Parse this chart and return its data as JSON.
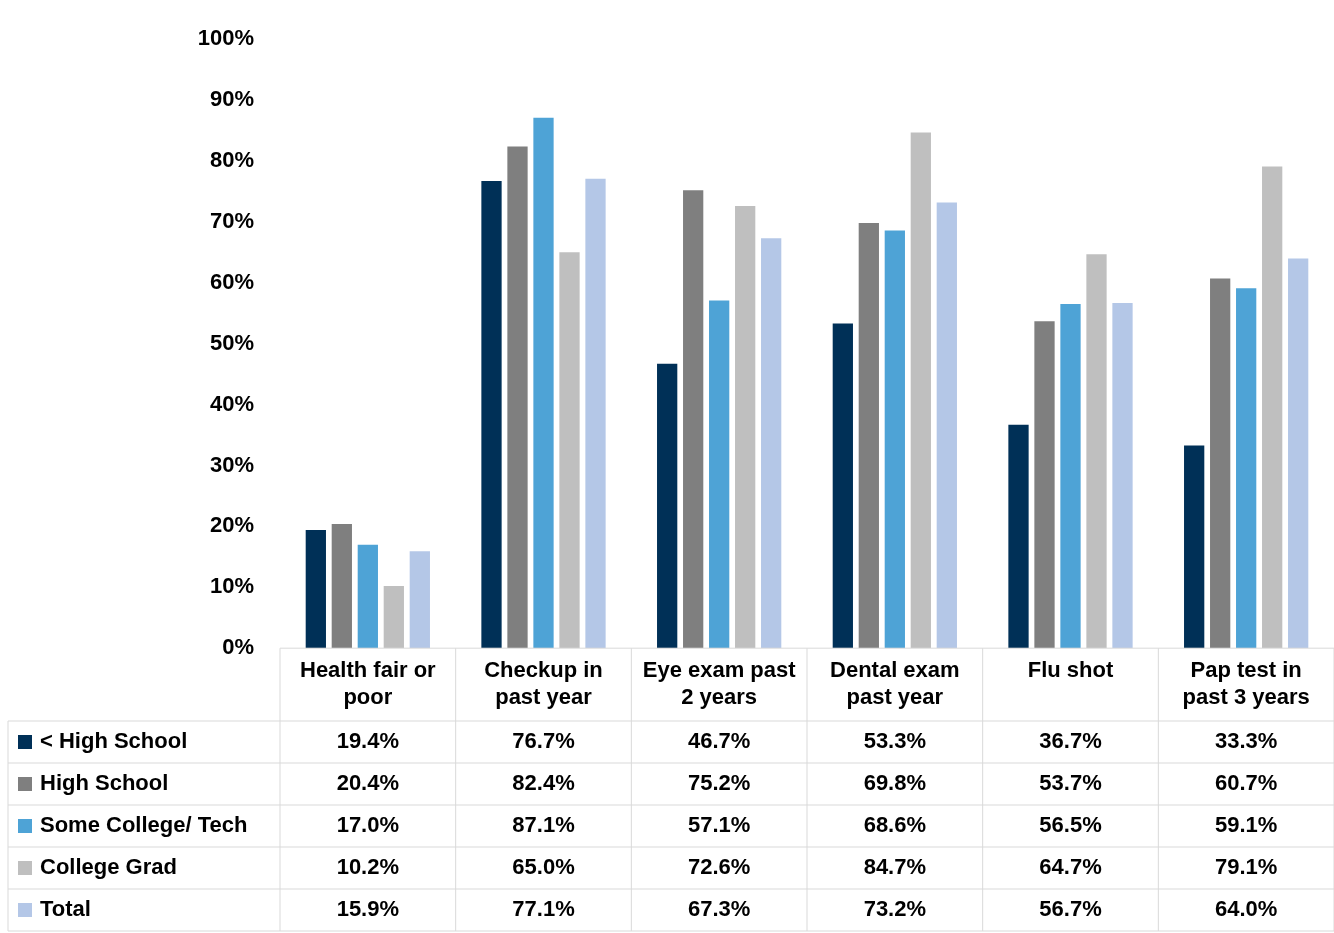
{
  "chart_data": {
    "type": "bar",
    "categories": [
      "Health fair or poor",
      "Checkup in past year",
      "Eye exam past 2 years",
      "Dental exam past year",
      "Flu shot",
      "Pap test in past 3 years"
    ],
    "series": [
      {
        "name": "< High School",
        "color": "#003057",
        "values": [
          19.4,
          76.7,
          46.7,
          53.3,
          36.7,
          33.3
        ],
        "value_labels": [
          "19.4%",
          "76.7%",
          "46.7%",
          "53.3%",
          "36.7%",
          "33.3%"
        ]
      },
      {
        "name": "High School",
        "color": "#7f7f7f",
        "values": [
          20.4,
          82.4,
          75.2,
          69.8,
          53.7,
          60.7
        ],
        "value_labels": [
          "20.4%",
          "82.4%",
          "75.2%",
          "69.8%",
          "53.7%",
          "60.7%"
        ]
      },
      {
        "name": "Some College/ Tech",
        "color": "#4ea3d6",
        "values": [
          17.0,
          87.1,
          57.1,
          68.6,
          56.5,
          59.1
        ],
        "value_labels": [
          "17.0%",
          "87.1%",
          "57.1%",
          "68.6%",
          "56.5%",
          "59.1%"
        ]
      },
      {
        "name": "College Grad",
        "color": "#bfbfbf",
        "values": [
          10.2,
          65.0,
          72.6,
          84.7,
          64.7,
          79.1
        ],
        "value_labels": [
          "10.2%",
          "65.0%",
          "72.6%",
          "84.7%",
          "64.7%",
          "79.1%"
        ]
      },
      {
        "name": "Total",
        "color": "#b4c7e7",
        "values": [
          15.9,
          77.1,
          67.3,
          73.2,
          56.7,
          64.0
        ],
        "value_labels": [
          "15.9%",
          "77.1%",
          "67.3%",
          "73.2%",
          "56.7%",
          "64.0%"
        ]
      }
    ],
    "ylim": [
      0,
      100
    ],
    "yticks": [
      {
        "value": 0,
        "label": "0%"
      },
      {
        "value": 10,
        "label": "10%"
      },
      {
        "value": 20,
        "label": "20%"
      },
      {
        "value": 30,
        "label": "30%"
      },
      {
        "value": 40,
        "label": "40%"
      },
      {
        "value": 50,
        "label": "50%"
      },
      {
        "value": 60,
        "label": "60%"
      },
      {
        "value": 70,
        "label": "70%"
      },
      {
        "value": 80,
        "label": "80%"
      },
      {
        "value": 90,
        "label": "90%"
      },
      {
        "value": 100,
        "label": "100%"
      }
    ],
    "grid": false,
    "legend": "bottom"
  }
}
